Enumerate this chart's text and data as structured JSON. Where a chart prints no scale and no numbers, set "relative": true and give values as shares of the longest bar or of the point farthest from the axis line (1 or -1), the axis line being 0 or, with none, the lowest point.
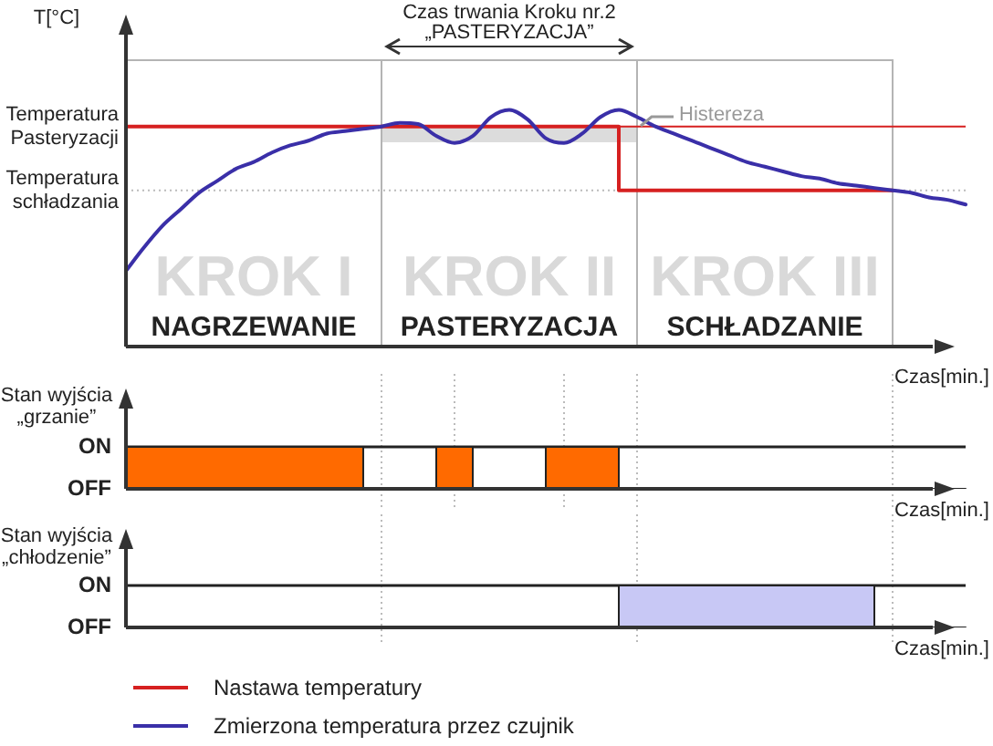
{
  "chart_data": [
    {
      "type": "line",
      "relative": true,
      "title": "Czas trwania Kroku nr.2 „PASTERYZACJA”",
      "ylabel": "T[°C]",
      "xlabel": "Czas[min.]",
      "legend": "bottom",
      "categories": [
        null,
        null,
        null,
        null,
        null,
        null,
        null,
        null,
        null,
        null,
        null,
        null,
        null,
        null,
        null,
        null,
        null,
        null,
        null,
        null,
        null,
        null,
        null,
        null,
        null,
        null,
        null,
        null,
        null,
        null,
        null,
        null,
        null,
        null,
        null,
        null,
        null,
        null,
        null,
        null,
        null,
        null,
        null,
        null,
        null,
        null,
        null
      ],
      "series": [
        {
          "name": "Nastawa temperatury",
          "type": "step",
          "color": "#d62020",
          "values": [
            0.93,
            0.93,
            0.93,
            0.93,
            0.93,
            0.93,
            0.93,
            0.93,
            0.93,
            0.93,
            0.93,
            0.93,
            0.93,
            0.93,
            0.93,
            0.93,
            0.93,
            0.93,
            0.93,
            0.93,
            0.93,
            0.93,
            0.93,
            0.93,
            0.93,
            0.93,
            0.93,
            0.93,
            0.66,
            0.66,
            0.66,
            0.66,
            0.66,
            0.66,
            0.66,
            0.66,
            0.66,
            0.66,
            0.66,
            0.66,
            0.66,
            0.66,
            0.66,
            null,
            null,
            null,
            null
          ]
        },
        {
          "name": "Zmierzona temperatura przez czujnik",
          "color": "#3a2fa8",
          "values": [
            0.32,
            0.42,
            0.51,
            0.58,
            0.65,
            0.7,
            0.75,
            0.78,
            0.82,
            0.85,
            0.87,
            0.9,
            0.91,
            0.92,
            0.93,
            0.945,
            0.94,
            0.89,
            0.86,
            0.89,
            0.97,
            1.0,
            0.96,
            0.88,
            0.86,
            0.9,
            0.97,
            1.0,
            0.97,
            0.93,
            0.9,
            0.87,
            0.84,
            0.81,
            0.78,
            0.76,
            0.74,
            0.72,
            0.71,
            0.69,
            0.68,
            0.67,
            0.66,
            0.65,
            0.63,
            0.62,
            0.6
          ]
        }
      ],
      "ref_lines": [
        {
          "axis": "y",
          "value": 0.93,
          "label": "Temperatura Pasteryzacji",
          "color": "#d62020",
          "line_style": "solid"
        },
        {
          "axis": "y",
          "value": 0.66,
          "label": "Temperatura schładzania",
          "color": "#bbbbbb",
          "line_style": "dotted"
        }
      ],
      "annotations": [
        "KROK I",
        "NAGRZEWANIE",
        "KROK II",
        "PASTERYZACJA",
        "KROK III",
        "SCHŁADZANIE",
        "Histereza"
      ]
    },
    {
      "type": "area",
      "relative": true,
      "ylabel": "Stan wyjścia „grzanie”",
      "grid": true,
      "xlabel": "Czas[min.]",
      "annotations": [
        "ON",
        "OFF"
      ],
      "categories": [
        null,
        null,
        null,
        null,
        null,
        null,
        null,
        null,
        null,
        null,
        null,
        null,
        null,
        null,
        null,
        null,
        null,
        null,
        null,
        null,
        null,
        null,
        null,
        null,
        null,
        null,
        null,
        null,
        null,
        null,
        null,
        null,
        null,
        null,
        null,
        null,
        null,
        null,
        null,
        null,
        null,
        null,
        null,
        null,
        null,
        null,
        null
      ],
      "series": [
        {
          "color": "#ff6a00",
          "values": [
            1,
            1,
            1,
            1,
            1,
            1,
            1,
            1,
            1,
            1,
            1,
            1,
            1,
            1,
            0,
            0,
            0,
            0,
            1,
            1,
            0,
            0,
            0,
            0,
            1,
            1,
            1,
            1,
            0,
            0,
            0,
            0,
            0,
            0,
            0,
            0,
            0,
            0,
            0,
            0,
            0,
            0,
            0,
            0,
            0,
            0,
            0
          ]
        }
      ]
    },
    {
      "type": "area",
      "relative": true,
      "ylabel": "Stan wyjścia „chłodzenie”",
      "grid": true,
      "xlabel": "Czas[min.]",
      "annotations": [
        "ON",
        "OFF"
      ],
      "categories": [
        null,
        null,
        null,
        null,
        null,
        null,
        null,
        null,
        null,
        null,
        null,
        null,
        null,
        null,
        null,
        null,
        null,
        null,
        null,
        null,
        null,
        null,
        null,
        null,
        null,
        null,
        null,
        null,
        null,
        null,
        null,
        null,
        null,
        null,
        null,
        null,
        null,
        null,
        null,
        null,
        null,
        null,
        null,
        null,
        null,
        null,
        null
      ],
      "series": [
        {
          "color": "#c8c8f5",
          "values": [
            0,
            0,
            0,
            0,
            0,
            0,
            0,
            0,
            0,
            0,
            0,
            0,
            0,
            0,
            0,
            0,
            0,
            0,
            0,
            0,
            0,
            0,
            0,
            0,
            0,
            0,
            0,
            0,
            1,
            1,
            1,
            1,
            1,
            1,
            1,
            1,
            1,
            1,
            1,
            1,
            1,
            1,
            0,
            0,
            0,
            0,
            0
          ]
        }
      ]
    }
  ]
}
